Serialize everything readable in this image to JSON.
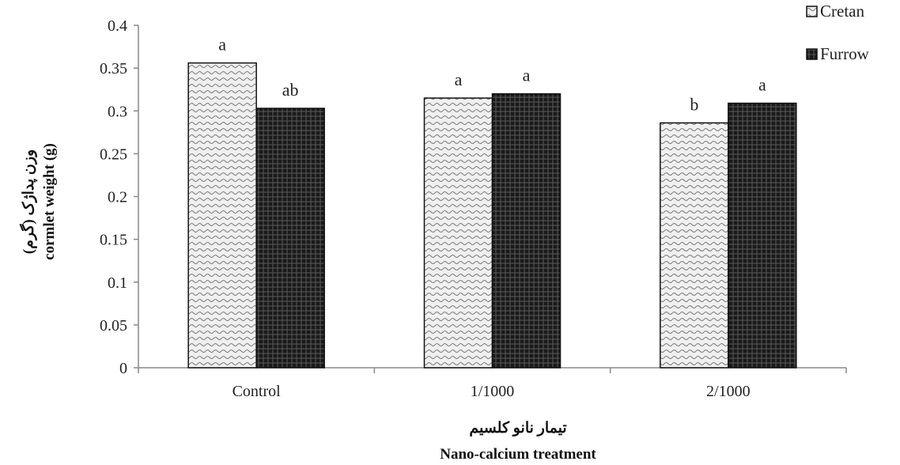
{
  "chart_data": {
    "type": "bar",
    "categories": [
      "Control",
      "1/1000",
      "2/1000"
    ],
    "series": [
      {
        "name": "Cretan",
        "values": [
          0.356,
          0.315,
          0.286
        ],
        "letters": [
          "a",
          "a",
          "b"
        ],
        "pattern": "wave-light"
      },
      {
        "name": "Furrow",
        "values": [
          0.303,
          0.32,
          0.309
        ],
        "letters": [
          "ab",
          "a",
          "a"
        ],
        "pattern": "grid-dark"
      }
    ],
    "yticks": [
      "0",
      "0.05",
      "0.1",
      "0.15",
      "0.2",
      "0.25",
      "0.3",
      "0.35",
      "0.4"
    ],
    "ylim": [
      0,
      0.4
    ],
    "xlabel_fa": "تیمار نانو کلسیم",
    "xlabel_en": "Nano-calcium treatment",
    "ylabel_fa": "وزن پداژک (گرم)",
    "ylabel_en": "cormlet weight (g)",
    "legend_position": "top-right",
    "grid": false,
    "colors": {
      "axis": "#888888",
      "bar_outline": "#111111",
      "light_fill": "#f0f0f0",
      "light_pattern": "#7a7a7a",
      "dark_fill": "#1a1a1a",
      "dark_pattern": "#555555"
    }
  }
}
